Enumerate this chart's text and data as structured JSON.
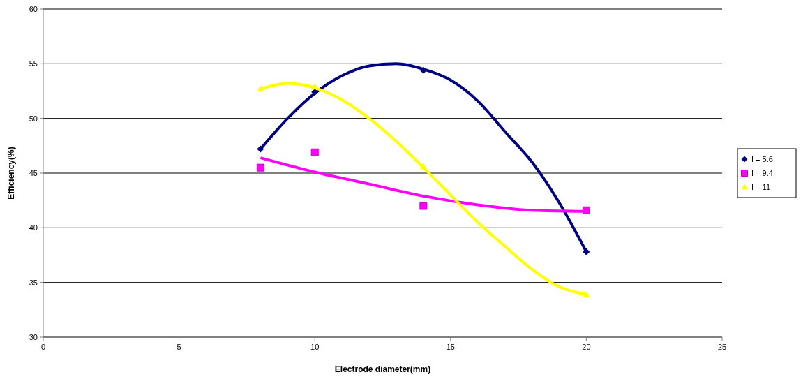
{
  "chart_data": {
    "type": "scatter",
    "xlabel": "Electrode diameter(mm)",
    "ylabel": "Efficiency(%)",
    "xlim": [
      0,
      25
    ],
    "xticks": [
      0,
      5,
      10,
      15,
      20,
      25
    ],
    "ylim": [
      30,
      60
    ],
    "yticks": [
      30,
      35,
      40,
      45,
      50,
      55,
      60
    ],
    "grid": "y",
    "legend": "right",
    "series": [
      {
        "name": "I = 5.6",
        "marker": "diamond",
        "color": "#000080",
        "x": [
          8,
          10,
          14,
          20
        ],
        "values": [
          47.2,
          52.4,
          54.4,
          37.8
        ]
      },
      {
        "name": "I = 9.4",
        "marker": "square",
        "color": "#ff00ff",
        "x": [
          8,
          10,
          14,
          20
        ],
        "values": [
          45.5,
          46.9,
          42.0,
          41.6
        ]
      },
      {
        "name": "I = 11",
        "marker": "triangle",
        "color": "#ffff00",
        "x": [
          8,
          10,
          14,
          20
        ],
        "values": [
          52.7,
          52.9,
          45.6,
          33.9
        ]
      },
      {
        "type": "line",
        "line_style": "solid",
        "color": "#000080",
        "x": [
          8,
          9,
          10,
          11,
          12,
          13,
          14,
          15,
          16,
          17,
          18,
          19,
          20
        ],
        "values": [
          47.2,
          50.0,
          52.3,
          53.9,
          54.8,
          55.0,
          54.5,
          53.5,
          51.6,
          48.8,
          46.0,
          42.3,
          37.8
        ]
      },
      {
        "type": "line",
        "line_style": "solid",
        "color": "#ff00ff",
        "x": [
          8,
          10,
          12,
          14,
          16,
          18,
          20
        ],
        "values": [
          46.4,
          45.1,
          44.0,
          42.9,
          42.1,
          41.6,
          41.5
        ]
      },
      {
        "type": "line",
        "line_style": "solid",
        "color": "#ffff00",
        "x": [
          8,
          9,
          10,
          11,
          12,
          13,
          14,
          15,
          16,
          17,
          18,
          19,
          20
        ],
        "values": [
          52.7,
          53.2,
          52.8,
          51.7,
          50.0,
          47.9,
          45.5,
          43.0,
          40.5,
          38.3,
          36.2,
          34.6,
          33.9
        ]
      }
    ]
  }
}
